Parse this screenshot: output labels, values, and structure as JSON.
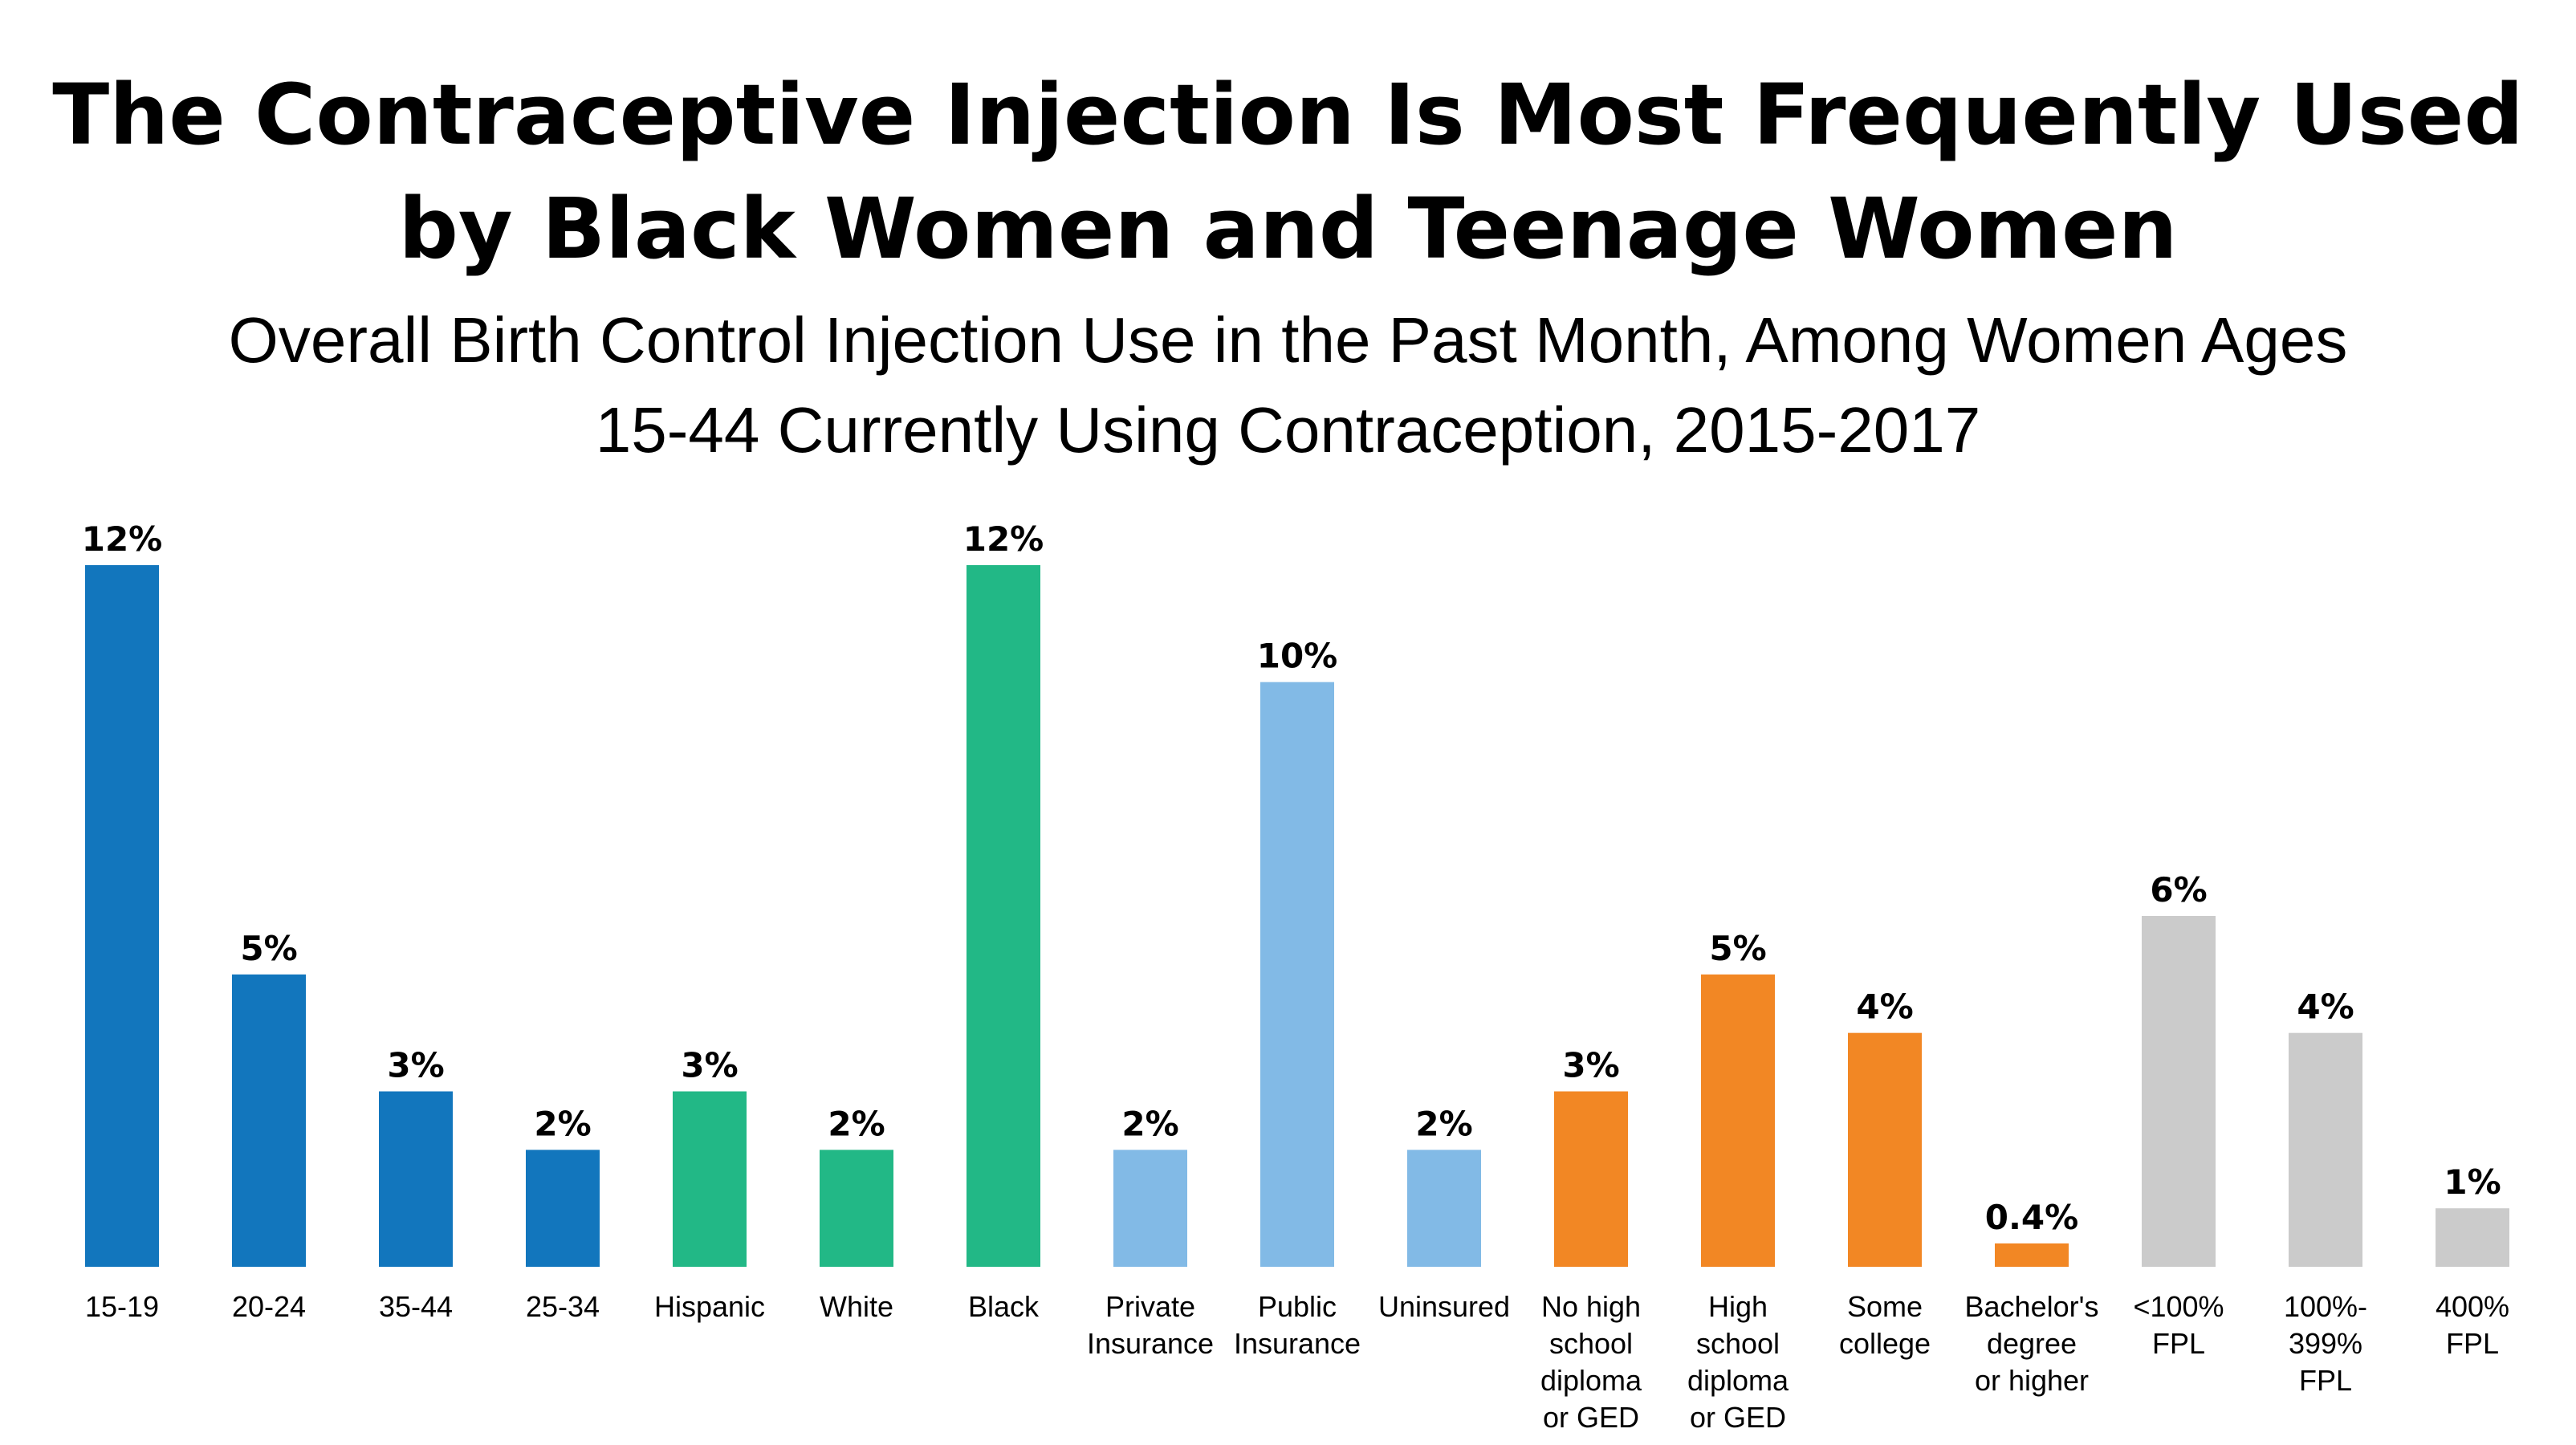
{
  "title_lines": [
    "The Contraceptive Injection Is Most Frequently Used",
    "by Black Women and Teenage Women"
  ],
  "subtitle_lines": [
    "Overall Birth Control Injection Use in the Past Month, Among Women Ages",
    "15-44 Currently Using Contraception, 2015-2017"
  ],
  "colors": {
    "age": "#1276BD",
    "race": "#22B886",
    "insurance": "#82BAE6",
    "education": "#F28724",
    "income": "#CBCBCB"
  },
  "chart_data": {
    "type": "bar",
    "title": "The Contraceptive Injection Is Most Frequently Used by Black Women and Teenage Women",
    "subtitle": "Overall Birth Control Injection Use in the Past Month, Among Women Ages 15-44 Currently Using Contraception, 2015-2017",
    "ylim": [
      0,
      12
    ],
    "grid": false,
    "categories": [
      [
        "15-19"
      ],
      [
        "20-24"
      ],
      [
        "35-44"
      ],
      [
        "25-34"
      ],
      [
        "Hispanic"
      ],
      [
        "White"
      ],
      [
        "Black"
      ],
      [
        "Private",
        "Insurance"
      ],
      [
        "Public",
        "Insurance"
      ],
      [
        "Uninsured"
      ],
      [
        "No high",
        "school",
        "diploma",
        "or GED"
      ],
      [
        "High",
        "school",
        "diploma",
        "or GED"
      ],
      [
        "Some",
        "college"
      ],
      [
        "Bachelor's",
        "degree",
        "or higher"
      ],
      [
        "<100%",
        "FPL"
      ],
      [
        "100%-",
        "399%",
        "FPL"
      ],
      [
        "400%",
        "FPL"
      ]
    ],
    "values": [
      12,
      5,
      3,
      2,
      3,
      2,
      12,
      2,
      10,
      2,
      3,
      5,
      4,
      0.4,
      6,
      4,
      1
    ],
    "labels": [
      "12%",
      "5%",
      "3%",
      "2%",
      "3%",
      "2%",
      "12%",
      "2%",
      "10%",
      "2%",
      "3%",
      "5%",
      "4%",
      "0.4%",
      "6%",
      "4%",
      "1%"
    ],
    "groups": [
      "age",
      "age",
      "age",
      "age",
      "race",
      "race",
      "race",
      "insurance",
      "insurance",
      "insurance",
      "education",
      "education",
      "education",
      "education",
      "income",
      "income",
      "income"
    ]
  }
}
